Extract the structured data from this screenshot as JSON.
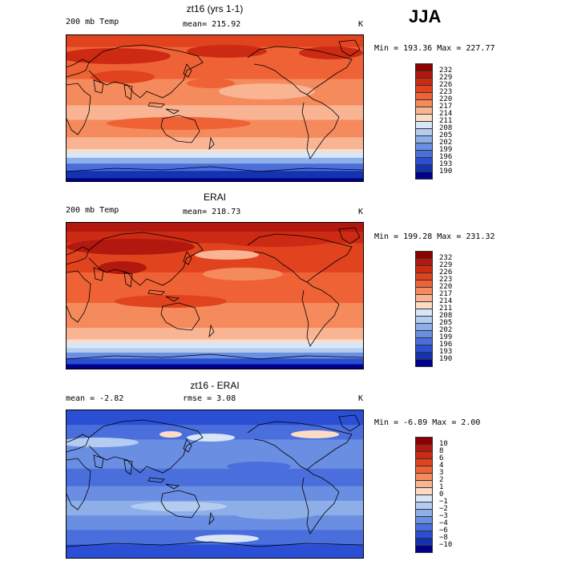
{
  "season": "JJA",
  "panels": [
    {
      "title": "zt16 (yrs 1-1)",
      "left_label": "200 mb Temp",
      "center_label": "mean= 215.92",
      "units": "K",
      "minmax": "Min = 193.36 Max = 227.77",
      "colorbar": {
        "labels": [
          "232",
          "229",
          "226",
          "223",
          "220",
          "217",
          "214",
          "211",
          "208",
          "205",
          "202",
          "199",
          "196",
          "193",
          "190"
        ],
        "colors": [
          "#8b0000",
          "#b2180e",
          "#cc2a12",
          "#e0431e",
          "#ee6235",
          "#f58a5c",
          "#f9b494",
          "#fddcc6",
          "#d8e6f7",
          "#b3ccef",
          "#8eaee8",
          "#6a8ee2",
          "#4a6fdd",
          "#2a4fd5",
          "#1433b0",
          "#00008b"
        ]
      },
      "field": "model"
    },
    {
      "title": "ERAI",
      "left_label": "200 mb Temp",
      "center_label": "mean= 218.73",
      "units": "K",
      "minmax": "Min = 199.28 Max = 231.32",
      "colorbar": {
        "labels": [
          "232",
          "229",
          "226",
          "223",
          "220",
          "217",
          "214",
          "211",
          "208",
          "205",
          "202",
          "199",
          "196",
          "193",
          "190"
        ],
        "colors": [
          "#8b0000",
          "#b2180e",
          "#cc2a12",
          "#e0431e",
          "#ee6235",
          "#f58a5c",
          "#f9b494",
          "#fddcc6",
          "#d8e6f7",
          "#b3ccef",
          "#8eaee8",
          "#6a8ee2",
          "#4a6fdd",
          "#2a4fd5",
          "#1433b0",
          "#00008b"
        ]
      },
      "field": "obs"
    },
    {
      "title": "zt16 - ERAI",
      "left_label": "mean =  -2.82",
      "center_label": "rmse =   3.08",
      "units": "K",
      "minmax": "Min =  -6.89 Max =   2.00",
      "colorbar": {
        "labels": [
          "10",
          "8",
          "6",
          "4",
          "3",
          "2",
          "1",
          "0",
          "−1",
          "−2",
          "−3",
          "−4",
          "−6",
          "−8",
          "−10"
        ],
        "colors": [
          "#8b0000",
          "#b2180e",
          "#cc2a12",
          "#e0431e",
          "#ee6235",
          "#f58a5c",
          "#f9b494",
          "#fddcc6",
          "#d8e6f7",
          "#b3ccef",
          "#8eaee8",
          "#6a8ee2",
          "#4a6fdd",
          "#2a4fd5",
          "#1433b0",
          "#00008b"
        ]
      },
      "field": "diff"
    }
  ]
}
